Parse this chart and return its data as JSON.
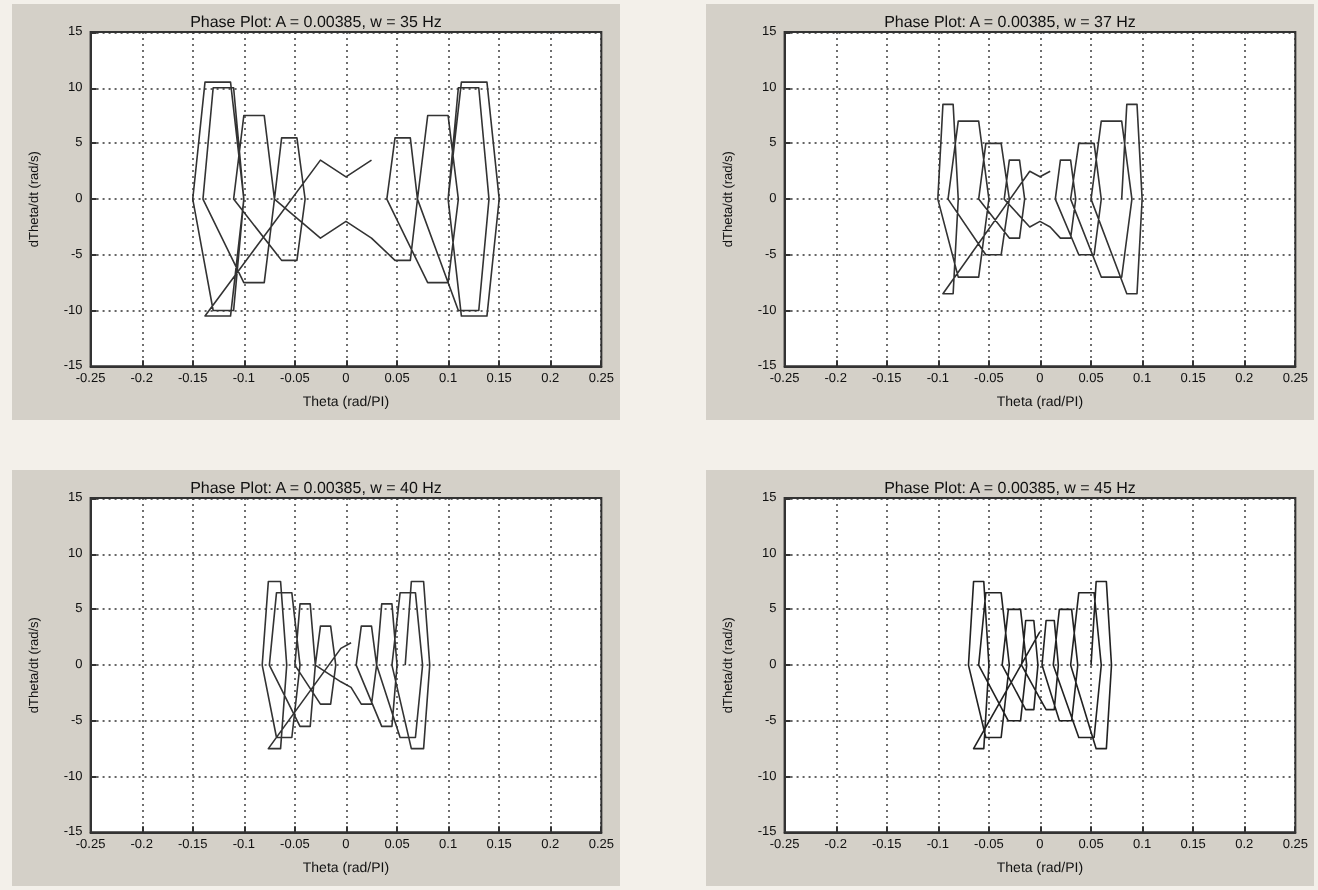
{
  "chart_data": [
    {
      "type": "line",
      "title": "Phase Plot: A = 0.00385, w = 35 Hz",
      "xlabel": "Theta (rad/PI)",
      "ylabel": "dTheta/dt (rad/s)",
      "xlim": [
        -0.25,
        0.25
      ],
      "ylim": [
        -15,
        15
      ],
      "xticks": [
        -0.25,
        -0.2,
        -0.15,
        -0.1,
        -0.05,
        0,
        0.05,
        0.1,
        0.15,
        0.2,
        0.25
      ],
      "yticks": [
        -15,
        -10,
        -5,
        0,
        5,
        10,
        15
      ],
      "grid": true,
      "marker": "none",
      "line_style": "solid",
      "color": "#333333",
      "x": [
        0.1,
        0.113,
        0.138,
        0.15,
        0.138,
        0.113,
        0.1,
        0.11,
        0.13,
        0.14,
        0.13,
        0.11,
        0.07,
        0.08,
        0.1,
        0.11,
        0.1,
        0.08,
        0.04,
        0.048,
        0.063,
        0.07,
        0.063,
        0.048,
        0.025,
        0,
        -0.025,
        -0.07,
        -0.063,
        -0.048,
        -0.04,
        -0.048,
        -0.063,
        -0.11,
        -0.1,
        -0.08,
        -0.07,
        -0.08,
        -0.1,
        -0.14,
        -0.13,
        -0.11,
        -0.1,
        -0.11,
        -0.13,
        -0.15,
        -0.138,
        -0.113,
        -0.1,
        -0.113,
        -0.138,
        -0.025,
        0,
        0.025
      ],
      "values": [
        0,
        10.5,
        10.5,
        0,
        -10.5,
        -10.5,
        0,
        10,
        10,
        0,
        -10,
        -10,
        0,
        7.5,
        7.5,
        0,
        -7.5,
        -7.5,
        0,
        5.5,
        5.5,
        0,
        -5.5,
        -5.5,
        -3.5,
        -2,
        -3.5,
        0,
        5.5,
        5.5,
        0,
        -5.5,
        -5.5,
        0,
        7.5,
        7.5,
        0,
        -7.5,
        -7.5,
        0,
        10,
        10,
        0,
        -10,
        -10,
        0,
        10.5,
        10.5,
        0,
        -10.5,
        -10.5,
        3.5,
        2,
        3.5
      ]
    },
    {
      "type": "line",
      "title": "Phase Plot: A = 0.00385, w = 37 Hz",
      "xlabel": "Theta (rad/PI)",
      "ylabel": "dTheta/dt (rad/s)",
      "xlim": [
        -0.25,
        0.25
      ],
      "ylim": [
        -15,
        15
      ],
      "xticks": [
        -0.25,
        -0.2,
        -0.15,
        -0.1,
        -0.05,
        0,
        0.05,
        0.1,
        0.15,
        0.2,
        0.25
      ],
      "yticks": [
        -15,
        -10,
        -5,
        0,
        5,
        10,
        15
      ],
      "grid": true,
      "marker": "none",
      "line_style": "solid",
      "color": "#333333",
      "x": [
        0.08,
        0.085,
        0.095,
        0.1,
        0.095,
        0.085,
        0.05,
        0.06,
        0.08,
        0.09,
        0.08,
        0.06,
        0.03,
        0.038,
        0.053,
        0.06,
        0.053,
        0.038,
        0.015,
        0.02,
        0.03,
        0.035,
        0.03,
        0.02,
        0.01,
        0,
        -0.01,
        -0.035,
        -0.03,
        -0.02,
        -0.015,
        -0.02,
        -0.03,
        -0.06,
        -0.053,
        -0.038,
        -0.03,
        -0.038,
        -0.053,
        -0.09,
        -0.08,
        -0.06,
        -0.05,
        -0.06,
        -0.08,
        -0.1,
        -0.095,
        -0.085,
        -0.08,
        -0.085,
        -0.095,
        -0.01,
        0,
        0.01
      ],
      "values": [
        0,
        8.5,
        8.5,
        0,
        -8.5,
        -8.5,
        0,
        7,
        7,
        0,
        -7,
        -7,
        0,
        5,
        5,
        0,
        -5,
        -5,
        0,
        3.5,
        3.5,
        0,
        -3.5,
        -3.5,
        -2.5,
        -2,
        -2.5,
        0,
        3.5,
        3.5,
        0,
        -3.5,
        -3.5,
        0,
        5,
        5,
        0,
        -5,
        -5,
        0,
        7,
        7,
        0,
        -7,
        -7,
        0,
        8.5,
        8.5,
        0,
        -8.5,
        -8.5,
        2.5,
        2,
        2.5
      ]
    },
    {
      "type": "line",
      "title": "Phase Plot: A = 0.00385, w = 40 Hz",
      "xlabel": "Theta (rad/PI)",
      "ylabel": "dTheta/dt (rad/s)",
      "xlim": [
        -0.25,
        0.25
      ],
      "ylim": [
        -15,
        15
      ],
      "xticks": [
        -0.25,
        -0.2,
        -0.15,
        -0.1,
        -0.05,
        0,
        0.05,
        0.1,
        0.15,
        0.2,
        0.25
      ],
      "yticks": [
        -15,
        -10,
        -5,
        0,
        5,
        10,
        15
      ],
      "grid": true,
      "marker": "none",
      "line_style": "solid",
      "color": "#333333",
      "x": [
        0.058,
        0.064,
        0.076,
        0.082,
        0.076,
        0.064,
        0.045,
        0.053,
        0.068,
        0.075,
        0.068,
        0.053,
        0.03,
        0.035,
        0.045,
        0.05,
        0.045,
        0.035,
        0.01,
        0.015,
        0.025,
        0.03,
        0.025,
        0.015,
        0.005,
        -0.005,
        -0.03,
        -0.025,
        -0.015,
        -0.01,
        -0.015,
        -0.025,
        -0.05,
        -0.045,
        -0.035,
        -0.03,
        -0.035,
        -0.045,
        -0.075,
        -0.068,
        -0.053,
        -0.045,
        -0.053,
        -0.068,
        -0.082,
        -0.076,
        -0.064,
        -0.058,
        -0.064,
        -0.076,
        -0.005,
        0.005
      ],
      "values": [
        0,
        7.5,
        7.5,
        0,
        -7.5,
        -7.5,
        0,
        6.5,
        6.5,
        0,
        -6.5,
        -6.5,
        0,
        5.5,
        5.5,
        0,
        -5.5,
        -5.5,
        0,
        3.5,
        3.5,
        0,
        -3.5,
        -3.5,
        -2,
        -1.5,
        0,
        3.5,
        3.5,
        0,
        -3.5,
        -3.5,
        0,
        5.5,
        5.5,
        0,
        -5.5,
        -5.5,
        0,
        6.5,
        6.5,
        0,
        -6.5,
        -6.5,
        0,
        7.5,
        7.5,
        0,
        -7.5,
        -7.5,
        1.5,
        2
      ]
    },
    {
      "type": "line",
      "title": "Phase Plot: A = 0.00385, w = 45 Hz",
      "xlabel": "Theta (rad/PI)",
      "ylabel": "dTheta/dt (rad/s)",
      "xlim": [
        -0.25,
        0.25
      ],
      "ylim": [
        -15,
        15
      ],
      "xticks": [
        -0.25,
        -0.2,
        -0.15,
        -0.1,
        -0.05,
        0,
        0.05,
        0.1,
        0.15,
        0.2,
        0.25
      ],
      "yticks": [
        -15,
        -10,
        -5,
        0,
        5,
        10,
        15
      ],
      "grid": true,
      "marker": "none",
      "line_style": "solid",
      "color": "#222222",
      "x": [
        0.05,
        0.055,
        0.065,
        0.07,
        0.065,
        0.055,
        0.03,
        0.038,
        0.053,
        0.06,
        0.053,
        0.038,
        0.013,
        0.019,
        0.031,
        0.037,
        0.031,
        0.019,
        0.002,
        0.006,
        0.014,
        0.018,
        0.014,
        0.006,
        0,
        -0.018,
        -0.014,
        -0.006,
        -0.002,
        -0.006,
        -0.014,
        -0.037,
        -0.031,
        -0.019,
        -0.013,
        -0.019,
        -0.031,
        -0.06,
        -0.053,
        -0.038,
        -0.03,
        -0.038,
        -0.053,
        -0.07,
        -0.065,
        -0.055,
        -0.05,
        -0.055,
        -0.065,
        0
      ],
      "values": [
        0,
        7.5,
        7.5,
        0,
        -7.5,
        -7.5,
        0,
        6.5,
        6.5,
        0,
        -6.5,
        -6.5,
        0,
        5,
        5,
        0,
        -5,
        -5,
        0,
        4,
        4,
        0,
        -4,
        -4,
        -3,
        0,
        4,
        4,
        0,
        -4,
        -4,
        0,
        5,
        5,
        0,
        -5,
        -5,
        0,
        6.5,
        6.5,
        0,
        -6.5,
        -6.5,
        0,
        7.5,
        7.5,
        0,
        -7.5,
        -7.5,
        3
      ]
    }
  ]
}
